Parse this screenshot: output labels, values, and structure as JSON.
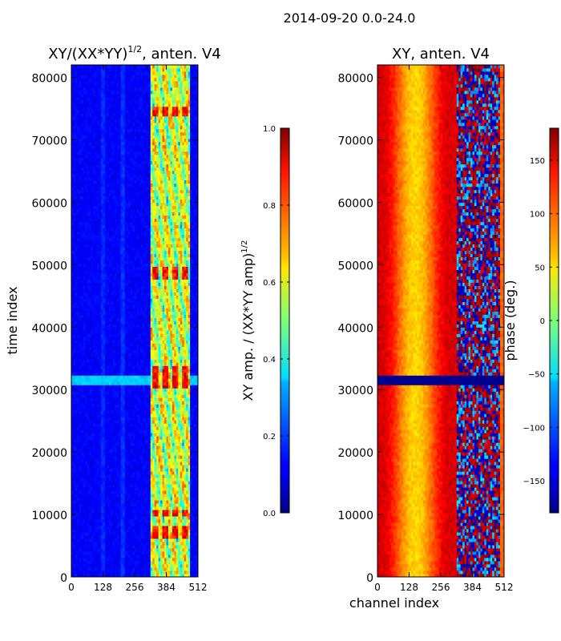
{
  "chart_data": {
    "type": "heatmap",
    "suptitle": "2014-09-20 0.0-24.0",
    "xlabel": "channel index",
    "ylabel": "time index",
    "panels": [
      {
        "title": "XY/(XX*YY)$^{1/2}$, anten. V4",
        "title_main": "XY/(XX*YY)",
        "title_sup": "1/2",
        "title_tail": ", anten. V4",
        "quantity": "amplitude",
        "xlim": [
          0,
          512
        ],
        "ylim": [
          0,
          82000
        ],
        "xticks": [
          0,
          128,
          256,
          384,
          512
        ],
        "yticks": [
          0,
          10000,
          20000,
          30000,
          40000,
          50000,
          60000,
          70000,
          80000
        ],
        "colorbar": {
          "label": "XY amp. / (XX*YY amp)$^{1/2}$",
          "label_main": "XY amp. / (XX*YY amp)",
          "label_sup": "1/2",
          "vmin": 0.0,
          "vmax": 1.0,
          "ticks": [
            "0.0",
            "0.2",
            "0.4",
            "0.6",
            "0.8",
            "1.0"
          ]
        },
        "features": {
          "background_value": 0.12,
          "high_variability_channels": [
            320,
            480
          ],
          "saturated_blocks_time": [
            [
              6000,
              8000
            ],
            [
              9500,
              11000
            ],
            [
              30000,
              34000
            ],
            [
              47500,
              49500
            ],
            [
              74000,
              75500
            ]
          ],
          "bright_band_time": [
            31000,
            32200
          ]
        }
      },
      {
        "title": "XY, anten. V4",
        "quantity": "phase",
        "xlim": [
          0,
          512
        ],
        "ylim": [
          0,
          82000
        ],
        "xticks": [
          0,
          128,
          256,
          384,
          512
        ],
        "yticks": [
          0,
          10000,
          20000,
          30000,
          40000,
          50000,
          60000,
          70000,
          80000
        ],
        "colorbar": {
          "label": "phase (deg.)",
          "vmin": -180,
          "vmax": 180,
          "ticks": [
            "150",
            "100",
            "50",
            "0",
            "−50",
            "−100",
            "−150"
          ]
        },
        "features": {
          "background_phase_deg": [
            60,
            150
          ],
          "noisy_channels": [
            320,
            500
          ],
          "dark_band_time": [
            30500,
            32200
          ]
        }
      }
    ]
  }
}
